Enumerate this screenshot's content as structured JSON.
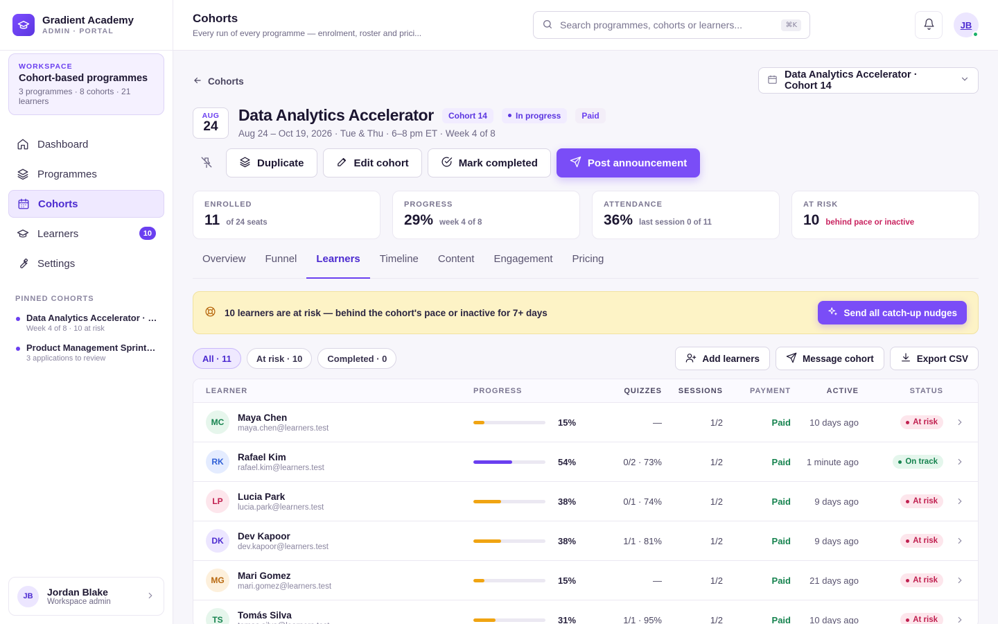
{
  "brand": {
    "name": "Gradient Academy",
    "sub": "ADMIN · PORTAL"
  },
  "workspace": {
    "label": "WORKSPACE",
    "title": "Cohort-based programmes",
    "meta": "3 programmes · 8 cohorts · 21 learners"
  },
  "nav": [
    {
      "label": "Dashboard",
      "icon": "home-icon"
    },
    {
      "label": "Programmes",
      "icon": "layers-icon"
    },
    {
      "label": "Cohorts",
      "icon": "calendar-icon",
      "active": true
    },
    {
      "label": "Learners",
      "icon": "graduation-cap-icon",
      "badge": "10"
    },
    {
      "label": "Settings",
      "icon": "wrench-icon"
    }
  ],
  "pinned": {
    "title": "PINNED COHORTS",
    "items": [
      {
        "name": "Data Analytics Accelerator · …",
        "meta": "Week 4 of 8 · 10 at risk"
      },
      {
        "name": "Product Management Sprint ·…",
        "meta": "3 applications to review"
      }
    ]
  },
  "user": {
    "initials": "JB",
    "name": "Jordan Blake",
    "role": "Workspace admin"
  },
  "topbar": {
    "title": "Cohorts",
    "subtitle": "Every run of every programme — enrolment, roster and prici...",
    "search_placeholder": "Search programmes, cohorts or learners...",
    "search_kbd": "⌘K",
    "avatar": "JB"
  },
  "back_label": "Cohorts",
  "cohort_select": "Data Analytics Accelerator · Cohort 14",
  "cohort": {
    "date_month": "AUG",
    "date_day": "24",
    "title": "Data Analytics Accelerator",
    "pill_cohort": "Cohort 14",
    "pill_status": "In progress",
    "pill_paid": "Paid",
    "subline": "Aug 24 – Oct 19, 2026 · Tue & Thu · 6–8 pm ET · Week 4 of 8"
  },
  "actions": {
    "duplicate": "Duplicate",
    "edit": "Edit cohort",
    "complete": "Mark completed",
    "announce": "Post announcement"
  },
  "stats": [
    {
      "label": "ENROLLED",
      "value": "11",
      "note": "of 24 seats"
    },
    {
      "label": "PROGRESS",
      "value": "29%",
      "note": "week 4 of 8"
    },
    {
      "label": "ATTENDANCE",
      "value": "36%",
      "note": "last session 0 of 11"
    },
    {
      "label": "AT RISK",
      "value": "10",
      "note": "behind pace or inactive",
      "danger": true
    }
  ],
  "tabs": [
    "Overview",
    "Funnel",
    "Learners",
    "Timeline",
    "Content",
    "Engagement",
    "Pricing"
  ],
  "active_tab": "Learners",
  "banner": {
    "text": "10 learners are at risk — behind the cohort's pace or inactive for 7+ days",
    "button": "Send all catch-up nudges"
  },
  "filters": [
    "All · 11",
    "At risk · 10",
    "Completed · 0"
  ],
  "table_actions": {
    "add": "Add learners",
    "message": "Message cohort",
    "export": "Export CSV"
  },
  "table": {
    "headers": {
      "learner": "LEARNER",
      "progress": "PROGRESS",
      "quizzes": "QUIZZES",
      "sessions": "SESSIONS",
      "payment": "PAYMENT",
      "active": "ACTIVE",
      "status": "STATUS"
    },
    "rows": [
      {
        "initials": "MC",
        "name": "Maya Chen",
        "email": "maya.chen@learners.test",
        "progress": 15,
        "pct": "15%",
        "quizzes": "—",
        "sessions": "1/2",
        "payment": "Paid",
        "active": "10 days ago",
        "status": "At risk",
        "risk": true,
        "color": "#e6f6ec",
        "tcolor": "#16834f"
      },
      {
        "initials": "RK",
        "name": "Rafael Kim",
        "email": "rafael.kim@learners.test",
        "progress": 54,
        "pct": "54%",
        "quizzes": "0/2 · 73%",
        "sessions": "1/2",
        "payment": "Paid",
        "active": "1 minute ago",
        "status": "On track",
        "risk": false,
        "color": "#e4ecff",
        "tcolor": "#2f5fd6"
      },
      {
        "initials": "LP",
        "name": "Lucia Park",
        "email": "lucia.park@learners.test",
        "progress": 38,
        "pct": "38%",
        "quizzes": "0/1 · 74%",
        "sessions": "1/2",
        "payment": "Paid",
        "active": "9 days ago",
        "status": "At risk",
        "risk": true,
        "color": "#fde6ec",
        "tcolor": "#c01f4f"
      },
      {
        "initials": "DK",
        "name": "Dev Kapoor",
        "email": "dev.kapoor@learners.test",
        "progress": 38,
        "pct": "38%",
        "quizzes": "1/1 · 81%",
        "sessions": "1/2",
        "payment": "Paid",
        "active": "9 days ago",
        "status": "At risk",
        "risk": true,
        "color": "#ece6ff",
        "tcolor": "#4c2bd0"
      },
      {
        "initials": "MG",
        "name": "Mari Gomez",
        "email": "mari.gomez@learners.test",
        "progress": 15,
        "pct": "15%",
        "quizzes": "—",
        "sessions": "1/2",
        "payment": "Paid",
        "active": "21 days ago",
        "status": "At risk",
        "risk": true,
        "color": "#fdf0dc",
        "tcolor": "#b8680f"
      },
      {
        "initials": "TS",
        "name": "Tomás Silva",
        "email": "tomas.silva@learners.test",
        "progress": 31,
        "pct": "31%",
        "quizzes": "1/1 · 95%",
        "sessions": "1/2",
        "payment": "Paid",
        "active": "10 days ago",
        "status": "At risk",
        "risk": true,
        "color": "#e6f6ec",
        "tcolor": "#16834f"
      }
    ]
  },
  "colors": {
    "accent": "#7a4df7",
    "bar_risk": "#f0a412",
    "bar_ok": "#6a3ff0"
  }
}
